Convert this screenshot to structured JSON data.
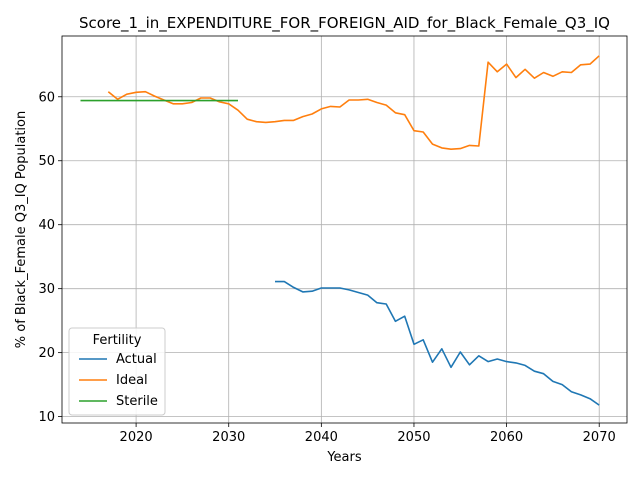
{
  "chart_data": {
    "type": "line",
    "title": "Score_1_in_EXPENDITURE_FOR_FOREIGN_AID_for_Black_Female_Q3_IQ",
    "xlabel": "Years",
    "ylabel": "% of Black_Female Q3_IQ Population",
    "xlim": [
      2012,
      2073
    ],
    "ylim": [
      9,
      69.5
    ],
    "xticks": [
      2020,
      2030,
      2040,
      2050,
      2060,
      2070
    ],
    "yticks": [
      10,
      20,
      30,
      40,
      50,
      60
    ],
    "grid": true,
    "legend": {
      "title": "Fertility",
      "position": "lower-left"
    },
    "series": [
      {
        "name": "Actual",
        "color": "#1f77b4",
        "x": [
          2035,
          2036,
          2037,
          2038,
          2039,
          2040,
          2041,
          2042,
          2043,
          2044,
          2045,
          2046,
          2047,
          2048,
          2049,
          2050,
          2051,
          2052,
          2053,
          2054,
          2055,
          2056,
          2057,
          2058,
          2059,
          2060,
          2061,
          2062,
          2063,
          2064,
          2065,
          2066,
          2067,
          2068,
          2069,
          2070
        ],
        "y": [
          31.1,
          31.1,
          30.2,
          29.5,
          29.6,
          30.1,
          30.1,
          30.1,
          29.8,
          29.4,
          29.0,
          27.8,
          27.6,
          24.9,
          25.7,
          21.3,
          22.0,
          18.5,
          20.6,
          17.7,
          20.1,
          18.1,
          19.5,
          18.6,
          19.0,
          18.6,
          18.4,
          18.0,
          17.1,
          16.7,
          15.5,
          15.0,
          13.9,
          13.4,
          12.8,
          11.8
        ]
      },
      {
        "name": "Ideal",
        "color": "#ff7f0e",
        "x": [
          2017,
          2018,
          2019,
          2020,
          2021,
          2022,
          2023,
          2024,
          2025,
          2026,
          2027,
          2028,
          2029,
          2030,
          2031,
          2032,
          2033,
          2034,
          2035,
          2036,
          2037,
          2038,
          2039,
          2040,
          2041,
          2042,
          2043,
          2044,
          2045,
          2046,
          2047,
          2048,
          2049,
          2050,
          2051,
          2052,
          2053,
          2054,
          2055,
          2056,
          2057,
          2058,
          2059,
          2060,
          2061,
          2062,
          2063,
          2064,
          2065,
          2066,
          2067,
          2068,
          2069,
          2070
        ],
        "y": [
          60.8,
          59.6,
          60.4,
          60.7,
          60.8,
          60.1,
          59.5,
          58.9,
          58.9,
          59.1,
          59.8,
          59.8,
          59.2,
          58.9,
          57.9,
          56.5,
          56.1,
          56.0,
          56.1,
          56.3,
          56.3,
          56.9,
          57.3,
          58.1,
          58.5,
          58.4,
          59.5,
          59.5,
          59.6,
          59.1,
          58.7,
          57.5,
          57.2,
          54.7,
          54.5,
          52.6,
          52.0,
          51.8,
          51.9,
          52.4,
          52.3,
          65.4,
          63.9,
          65.1,
          63.0,
          64.3,
          62.9,
          63.8,
          63.2,
          63.9,
          63.8,
          65.0,
          65.1,
          66.4
        ]
      },
      {
        "name": "Sterile",
        "color": "#2ca02c",
        "x": [
          2014,
          2031
        ],
        "y": [
          59.4,
          59.4
        ]
      }
    ]
  }
}
